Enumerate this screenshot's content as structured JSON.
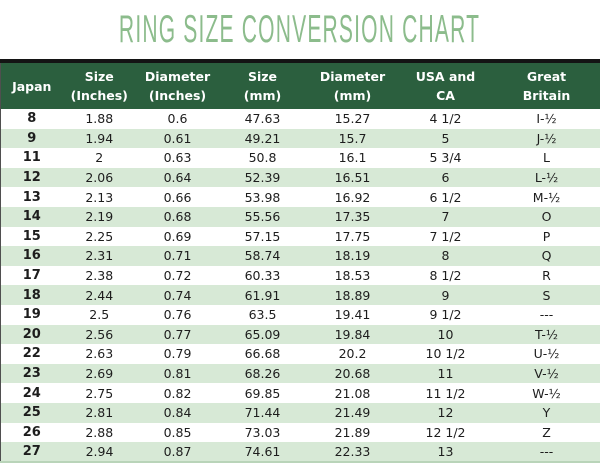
{
  "title": "RING SIZE CONVERSION CHART",
  "colors": {
    "header_bg": "#2b5f3e",
    "row_alt_bg": "#d7e9d6",
    "row_bg": "#ffffff",
    "title_green": "#8cbc8c",
    "top_border": "#141414",
    "body_text": "#1d1d1d"
  },
  "chart_data": {
    "type": "table",
    "title": "RING SIZE CONVERSION CHART",
    "columns": [
      {
        "line1": "Japan",
        "line2": ""
      },
      {
        "line1": "Size",
        "line2": "(Inches)"
      },
      {
        "line1": "Diameter",
        "line2": "(Inches)"
      },
      {
        "line1": "Size",
        "line2": "(mm)"
      },
      {
        "line1": "Diameter",
        "line2": "(mm)"
      },
      {
        "line1": "USA and",
        "line2": "CA"
      },
      {
        "line1": "Great",
        "line2": "Britain"
      }
    ],
    "rows": [
      [
        "8",
        "1.88",
        "0.6",
        "47.63",
        "15.27",
        "4 1/2",
        "I-½"
      ],
      [
        "9",
        "1.94",
        "0.61",
        "49.21",
        "15.7",
        "5",
        "J-½"
      ],
      [
        "11",
        "2",
        "0.63",
        "50.8",
        "16.1",
        "5 3/4",
        "L"
      ],
      [
        "12",
        "2.06",
        "0.64",
        "52.39",
        "16.51",
        "6",
        "L-½"
      ],
      [
        "13",
        "2.13",
        "0.66",
        "53.98",
        "16.92",
        "6 1/2",
        "M-½"
      ],
      [
        "14",
        "2.19",
        "0.68",
        "55.56",
        "17.35",
        "7",
        "O"
      ],
      [
        "15",
        "2.25",
        "0.69",
        "57.15",
        "17.75",
        "7 1/2",
        "P"
      ],
      [
        "16",
        "2.31",
        "0.71",
        "58.74",
        "18.19",
        "8",
        "Q"
      ],
      [
        "17",
        "2.38",
        "0.72",
        "60.33",
        "18.53",
        "8 1/2",
        "R"
      ],
      [
        "18",
        "2.44",
        "0.74",
        "61.91",
        "18.89",
        "9",
        "S"
      ],
      [
        "19",
        "2.5",
        "0.76",
        "63.5",
        "19.41",
        "9 1/2",
        "---"
      ],
      [
        "20",
        "2.56",
        "0.77",
        "65.09",
        "19.84",
        "10",
        "T-½"
      ],
      [
        "22",
        "2.63",
        "0.79",
        "66.68",
        "20.2",
        "10 1/2",
        "U-½"
      ],
      [
        "23",
        "2.69",
        "0.81",
        "68.26",
        "20.68",
        "11",
        "V-½"
      ],
      [
        "24",
        "2.75",
        "0.82",
        "69.85",
        "21.08",
        "11 1/2",
        "W-½"
      ],
      [
        "25",
        "2.81",
        "0.84",
        "71.44",
        "21.49",
        "12",
        "Y"
      ],
      [
        "26",
        "2.88",
        "0.85",
        "73.03",
        "21.89",
        "12 1/2",
        "Z"
      ],
      [
        "27",
        "2.94",
        "0.87",
        "74.61",
        "22.33",
        "13",
        "---"
      ]
    ]
  }
}
